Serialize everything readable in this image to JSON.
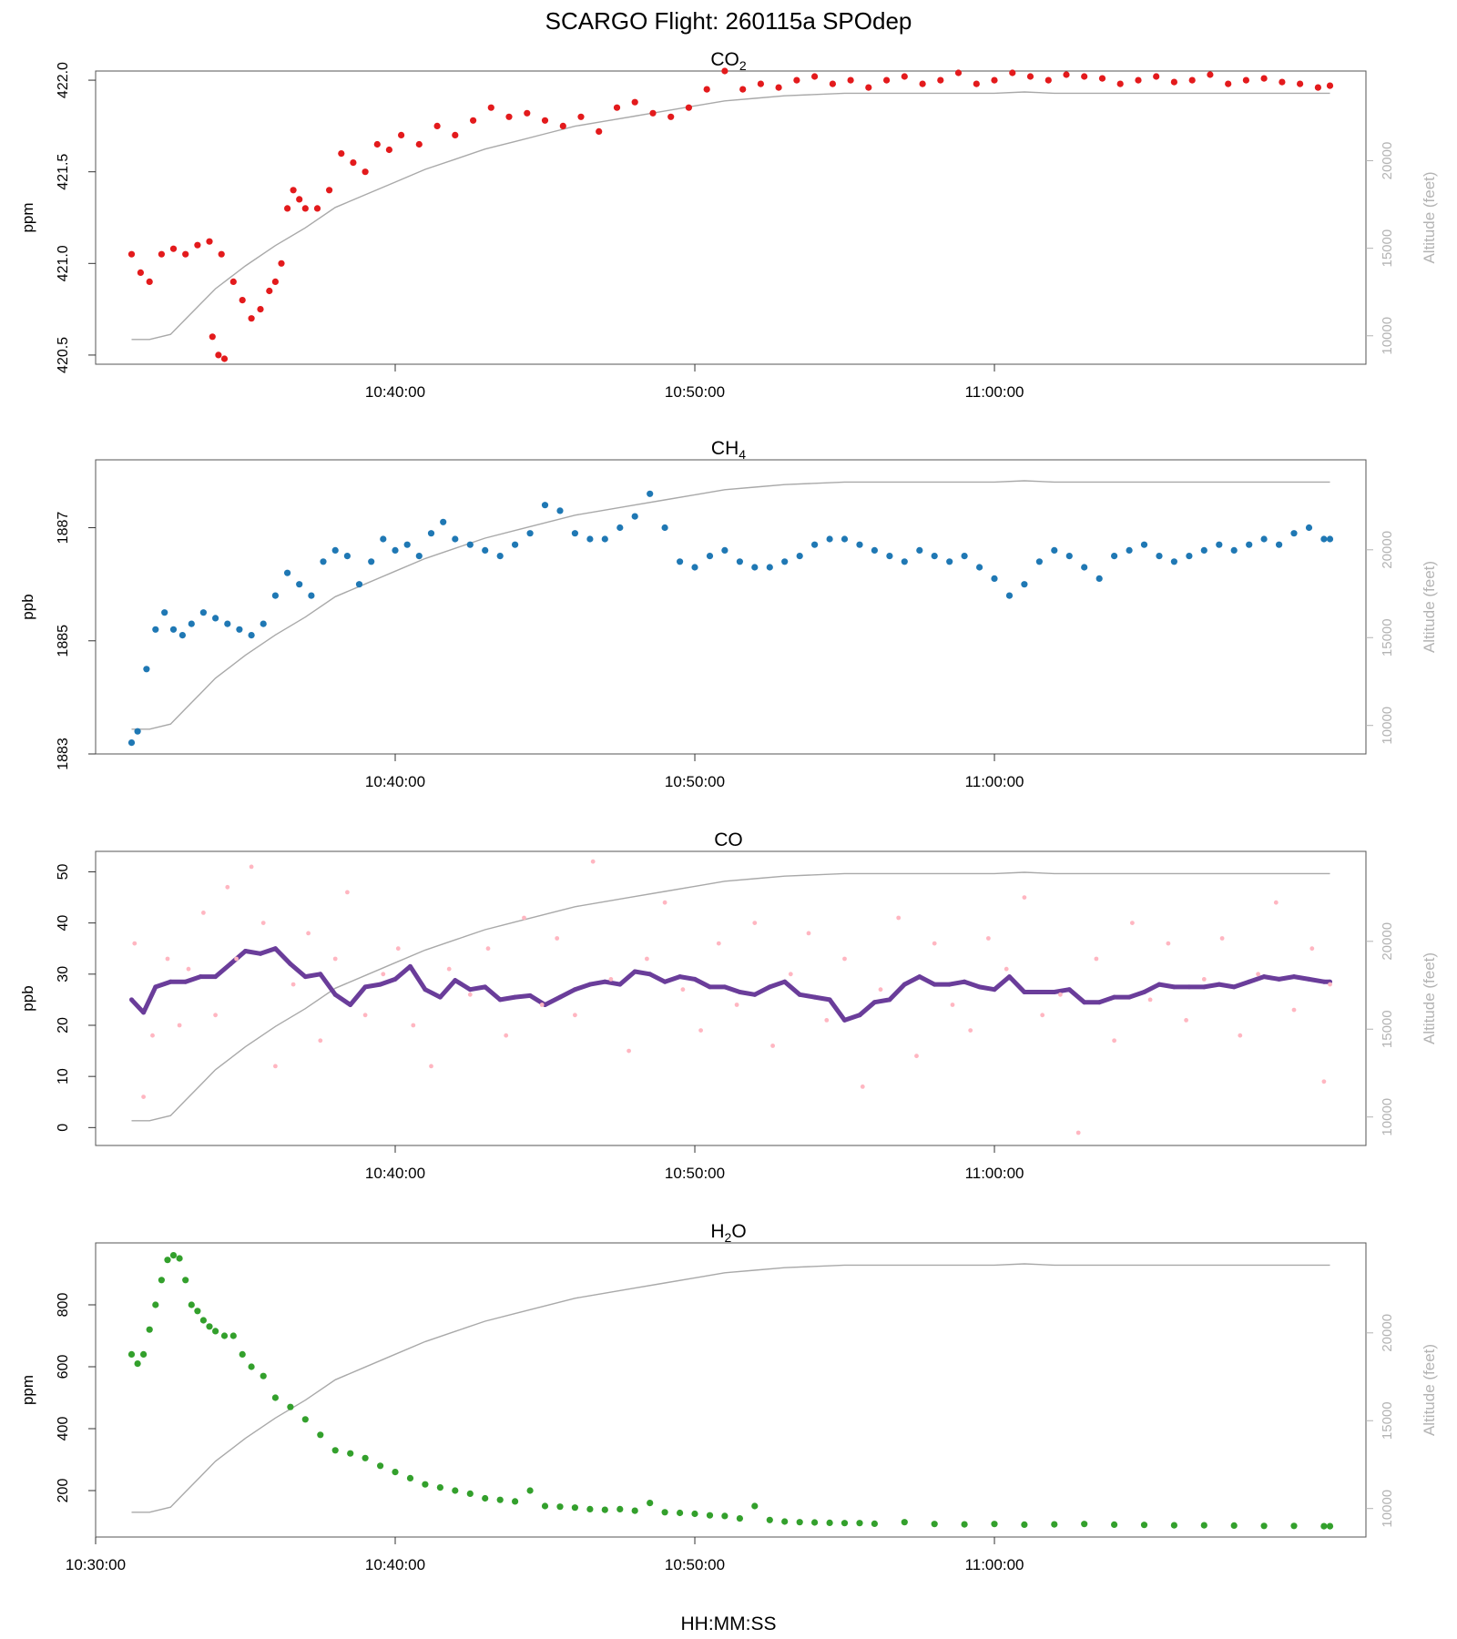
{
  "figure": {
    "title": "SCARGO Flight: 260115a  SPOdep",
    "xlabel": "HH:MM:SS"
  },
  "chart_data": [
    {
      "type": "scatter",
      "title": "CO",
      "title_sub": "2",
      "ylabel": "ppm",
      "y2label": "Altitude (feet)",
      "ylim": [
        420.45,
        422.05
      ],
      "yticks": [
        "420.5",
        "421.0",
        "421.5",
        "422.0"
      ],
      "ytick_values": [
        420.5,
        421.0,
        421.5,
        422.0
      ],
      "xticks": [
        "10:40:00",
        "10:50:00",
        "11:00:00"
      ],
      "point_color": "#e31a1c",
      "series": [
        {
          "name": "CO2",
          "x_min": [
            1.2,
            1.5,
            1.8,
            2.2,
            2.6,
            3.0,
            3.4,
            3.8,
            4.2,
            3.9,
            4.1,
            4.3,
            4.6,
            4.9,
            5.2,
            5.5,
            5.8,
            6.0,
            6.2,
            6.4,
            6.6,
            6.8,
            7.0,
            7.4,
            7.8,
            8.2,
            8.6,
            9.0,
            9.4,
            9.8,
            10.2,
            10.8,
            11.4,
            12.0,
            12.6,
            13.2,
            13.8,
            14.4,
            15.0,
            15.6,
            16.2,
            16.8,
            17.4,
            18.0,
            18.6,
            19.2,
            19.8,
            20.4,
            21.0,
            21.6,
            22.2,
            22.8,
            23.4,
            24.0,
            24.6,
            25.2,
            25.8,
            26.4,
            27.0,
            27.6,
            28.2,
            28.8,
            29.4,
            30.0,
            30.6,
            31.2,
            31.8,
            32.4,
            33.0,
            33.6,
            34.2,
            34.8,
            35.4,
            36.0,
            36.6,
            37.2,
            37.8,
            38.4,
            39.0,
            39.6,
            40.2,
            40.8,
            41.2
          ],
          "values": [
            421.05,
            420.95,
            420.9,
            421.05,
            421.08,
            421.05,
            421.1,
            421.12,
            421.05,
            420.6,
            420.5,
            420.48,
            420.9,
            420.8,
            420.7,
            420.75,
            420.85,
            420.9,
            421.0,
            421.3,
            421.4,
            421.35,
            421.3,
            421.3,
            421.4,
            421.6,
            421.55,
            421.5,
            421.65,
            421.62,
            421.7,
            421.65,
            421.75,
            421.7,
            421.78,
            421.85,
            421.8,
            421.82,
            421.78,
            421.75,
            421.8,
            421.72,
            421.85,
            421.88,
            421.82,
            421.8,
            421.85,
            421.95,
            422.05,
            421.95,
            421.98,
            421.96,
            422.0,
            422.02,
            421.98,
            422.0,
            421.96,
            422.0,
            422.02,
            421.98,
            422.0,
            422.04,
            421.98,
            422.0,
            422.04,
            422.02,
            422.0,
            422.03,
            422.02,
            422.01,
            421.98,
            422.0,
            422.02,
            421.99,
            422.0,
            422.03,
            421.98,
            422.0,
            422.01,
            421.99,
            421.98,
            421.96,
            421.97
          ]
        }
      ]
    },
    {
      "type": "scatter",
      "title": "CH",
      "title_sub": "4",
      "ylabel": "ppb",
      "y2label": "Altitude (feet)",
      "ylim": [
        1883,
        1888.2
      ],
      "yticks": [
        "1883",
        "1885",
        "1887"
      ],
      "ytick_values": [
        1883,
        1885,
        1887
      ],
      "xticks": [
        "10:40:00",
        "10:50:00",
        "11:00:00"
      ],
      "point_color": "#1f78b4",
      "series": [
        {
          "name": "CH4",
          "x_min": [
            1.2,
            1.4,
            1.7,
            2.0,
            2.3,
            2.6,
            2.9,
            3.2,
            3.6,
            4.0,
            4.4,
            4.8,
            5.2,
            5.6,
            6.0,
            6.4,
            6.8,
            7.2,
            7.6,
            8.0,
            8.4,
            8.8,
            9.2,
            9.6,
            10.0,
            10.4,
            10.8,
            11.2,
            11.6,
            12.0,
            12.5,
            13.0,
            13.5,
            14.0,
            14.5,
            15.0,
            15.5,
            16.0,
            16.5,
            17.0,
            17.5,
            18.0,
            18.5,
            19.0,
            19.5,
            20.0,
            20.5,
            21.0,
            21.5,
            22.0,
            22.5,
            23.0,
            23.5,
            24.0,
            24.5,
            25.0,
            25.5,
            26.0,
            26.5,
            27.0,
            27.5,
            28.0,
            28.5,
            29.0,
            29.5,
            30.0,
            30.5,
            31.0,
            31.5,
            32.0,
            32.5,
            33.0,
            33.5,
            34.0,
            34.5,
            35.0,
            35.5,
            36.0,
            36.5,
            37.0,
            37.5,
            38.0,
            38.5,
            39.0,
            39.5,
            40.0,
            40.5,
            41.0,
            41.2
          ],
          "values": [
            1883.2,
            1883.4,
            1884.5,
            1885.2,
            1885.5,
            1885.2,
            1885.1,
            1885.3,
            1885.5,
            1885.4,
            1885.3,
            1885.2,
            1885.1,
            1885.3,
            1885.8,
            1886.2,
            1886.0,
            1885.8,
            1886.4,
            1886.6,
            1886.5,
            1886.0,
            1886.4,
            1886.8,
            1886.6,
            1886.7,
            1886.5,
            1886.9,
            1887.1,
            1886.8,
            1886.7,
            1886.6,
            1886.5,
            1886.7,
            1886.9,
            1887.4,
            1887.3,
            1886.9,
            1886.8,
            1886.8,
            1887.0,
            1887.2,
            1887.6,
            1887.0,
            1886.4,
            1886.3,
            1886.5,
            1886.6,
            1886.4,
            1886.3,
            1886.3,
            1886.4,
            1886.5,
            1886.7,
            1886.8,
            1886.8,
            1886.7,
            1886.6,
            1886.5,
            1886.4,
            1886.6,
            1886.5,
            1886.4,
            1886.5,
            1886.3,
            1886.1,
            1885.8,
            1886.0,
            1886.4,
            1886.6,
            1886.5,
            1886.3,
            1886.1,
            1886.5,
            1886.6,
            1886.7,
            1886.5,
            1886.4,
            1886.5,
            1886.6,
            1886.7,
            1886.6,
            1886.7,
            1886.8,
            1886.7,
            1886.9,
            1887.0,
            1886.8,
            1886.8
          ]
        }
      ]
    },
    {
      "type": "scatter",
      "title": "CO",
      "title_sub": "",
      "ylabel": "ppb",
      "y2label": "Altitude (feet)",
      "ylim": [
        -3.5,
        54
      ],
      "yticks": [
        "0",
        "10",
        "20",
        "30",
        "40",
        "50"
      ],
      "ytick_values": [
        0,
        10,
        20,
        30,
        40,
        50
      ],
      "xticks": [
        "10:40:00",
        "10:50:00",
        "11:00:00"
      ],
      "point_color": "#ffb6c1",
      "smooth_color": "#6a3d9a",
      "series": [
        {
          "name": "CO smoothed",
          "x_min": [
            1.2,
            1.6,
            2.0,
            2.5,
            3.0,
            3.5,
            4.0,
            4.5,
            5.0,
            5.5,
            6.0,
            6.5,
            7.0,
            7.5,
            8.0,
            8.5,
            9.0,
            9.5,
            10.0,
            10.5,
            11.0,
            11.5,
            12.0,
            12.5,
            13.0,
            13.5,
            14.0,
            14.5,
            15.0,
            15.5,
            16.0,
            16.5,
            17.0,
            17.5,
            18.0,
            18.5,
            19.0,
            19.5,
            20.0,
            20.5,
            21.0,
            21.5,
            22.0,
            22.5,
            23.0,
            23.5,
            24.0,
            24.5,
            25.0,
            25.5,
            26.0,
            26.5,
            27.0,
            27.5,
            28.0,
            28.5,
            29.0,
            29.5,
            30.0,
            30.5,
            31.0,
            31.5,
            32.0,
            32.5,
            33.0,
            33.5,
            34.0,
            34.5,
            35.0,
            35.5,
            36.0,
            36.5,
            37.0,
            37.5,
            38.0,
            38.5,
            39.0,
            39.5,
            40.0,
            40.5,
            41.0,
            41.2
          ],
          "values": [
            25,
            22.5,
            27.5,
            28.5,
            28.5,
            29.5,
            29.5,
            32,
            34.5,
            34,
            35,
            32,
            29.5,
            30,
            26,
            24,
            27.5,
            28,
            29,
            31.5,
            27,
            25.5,
            28.8,
            27,
            27.5,
            25,
            25.5,
            25.8,
            24,
            25.5,
            27,
            28,
            28.5,
            28,
            30.5,
            30,
            28.5,
            29.5,
            29,
            27.5,
            27.5,
            26.5,
            26,
            27.5,
            28.5,
            26,
            25.5,
            25,
            21,
            22,
            24.5,
            25,
            28,
            29.5,
            28,
            28,
            28.5,
            27.5,
            27,
            29.5,
            26.5,
            26.5,
            26.5,
            27,
            24.5,
            24.5,
            25.5,
            25.5,
            26.5,
            28,
            27.5,
            27.5,
            27.5,
            28,
            27.5,
            28.5,
            29.5,
            29,
            29.5,
            29,
            28.5,
            28.5
          ]
        },
        {
          "name": "CO raw",
          "x_min": [
            1.3,
            1.6,
            1.9,
            2.4,
            2.8,
            3.1,
            3.6,
            4.0,
            4.4,
            4.7,
            5.2,
            5.6,
            6.0,
            6.6,
            7.1,
            7.5,
            8.0,
            8.4,
            9.0,
            9.6,
            10.1,
            10.6,
            11.2,
            11.8,
            12.5,
            13.1,
            13.7,
            14.3,
            14.9,
            15.4,
            16.0,
            16.6,
            17.2,
            17.8,
            18.4,
            19.0,
            19.6,
            20.2,
            20.8,
            21.4,
            22.0,
            22.6,
            23.2,
            23.8,
            24.4,
            25.0,
            25.6,
            26.2,
            26.8,
            27.4,
            28.0,
            28.6,
            29.2,
            29.8,
            30.4,
            31.0,
            31.6,
            32.2,
            32.8,
            33.4,
            34.0,
            34.6,
            35.2,
            35.8,
            36.4,
            37.0,
            37.6,
            38.2,
            38.8,
            39.4,
            40.0,
            40.6,
            41.0,
            41.2
          ],
          "values": [
            36,
            6,
            18,
            33,
            20,
            31,
            42,
            22,
            47,
            33,
            51,
            40,
            12,
            28,
            38,
            17,
            33,
            46,
            22,
            30,
            35,
            20,
            12,
            31,
            26,
            35,
            18,
            41,
            24,
            37,
            22,
            52,
            29,
            15,
            33,
            44,
            27,
            19,
            36,
            24,
            40,
            16,
            30,
            38,
            21,
            33,
            8,
            27,
            41,
            14,
            36,
            24,
            19,
            37,
            31,
            45,
            22,
            26,
            -1,
            33,
            17,
            40,
            25,
            36,
            21,
            29,
            37,
            18,
            30,
            44,
            23,
            35,
            9,
            28
          ]
        }
      ]
    },
    {
      "type": "scatter",
      "title": "H",
      "title_sub": "2",
      "title_tail": "O",
      "ylabel": "ppm",
      "y2label": "Altitude (feet)",
      "ylim": [
        50,
        1000
      ],
      "yticks": [
        "200",
        "400",
        "600",
        "800"
      ],
      "ytick_values": [
        200,
        400,
        600,
        800
      ],
      "xticks": [
        "10:30:00",
        "10:40:00",
        "10:50:00",
        "11:00:00"
      ],
      "point_color": "#33a02c",
      "series": [
        {
          "name": "H2O",
          "x_min": [
            1.2,
            1.4,
            1.6,
            1.8,
            2.0,
            2.2,
            2.4,
            2.6,
            2.8,
            3.0,
            3.2,
            3.4,
            3.6,
            3.8,
            4.0,
            4.3,
            4.6,
            4.9,
            5.2,
            5.6,
            6.0,
            6.5,
            7.0,
            7.5,
            8.0,
            8.5,
            9.0,
            9.5,
            10.0,
            10.5,
            11.0,
            11.5,
            12.0,
            12.5,
            13.0,
            13.5,
            14.0,
            14.5,
            15.0,
            15.5,
            16.0,
            16.5,
            17.0,
            17.5,
            18.0,
            18.5,
            19.0,
            19.5,
            20.0,
            20.5,
            21.0,
            21.5,
            22.0,
            22.5,
            23.0,
            23.5,
            24.0,
            24.5,
            25.0,
            25.5,
            26.0,
            27.0,
            28.0,
            29.0,
            30.0,
            31.0,
            32.0,
            33.0,
            34.0,
            35.0,
            36.0,
            37.0,
            38.0,
            39.0,
            40.0,
            41.0,
            41.2
          ],
          "values": [
            640,
            610,
            640,
            720,
            800,
            880,
            945,
            960,
            950,
            880,
            800,
            780,
            750,
            730,
            715,
            700,
            700,
            640,
            600,
            570,
            500,
            470,
            430,
            380,
            330,
            320,
            305,
            280,
            260,
            240,
            220,
            210,
            200,
            190,
            175,
            170,
            165,
            200,
            150,
            148,
            145,
            140,
            138,
            140,
            135,
            160,
            130,
            128,
            125,
            120,
            118,
            110,
            150,
            105,
            100,
            98,
            97,
            96,
            95,
            95,
            93,
            98,
            92,
            91,
            92,
            90,
            91,
            92,
            90,
            89,
            88,
            88,
            87,
            86,
            86,
            85,
            85
          ]
        }
      ]
    }
  ]
}
